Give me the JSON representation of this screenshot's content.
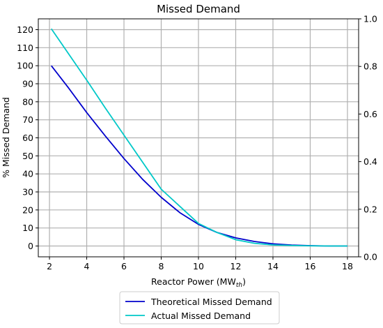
{
  "chart_data": {
    "type": "line",
    "title": "Missed Demand",
    "xlabel": "Reactor Power (MW",
    "xlabel_sub": "th",
    "xlabel_suffix": ")",
    "ylabel": "% Missed Demand",
    "xlim": [
      1.4,
      18.6
    ],
    "ylim": [
      -6,
      126
    ],
    "y2lim": [
      0.0,
      1.0
    ],
    "xticks": [
      2,
      4,
      6,
      8,
      10,
      12,
      14,
      16,
      18
    ],
    "yticks": [
      0,
      10,
      20,
      30,
      40,
      50,
      60,
      70,
      80,
      90,
      100,
      110,
      120
    ],
    "y2ticks": [
      "0.0",
      "0.2",
      "0.4",
      "0.6",
      "0.8",
      "1.0"
    ],
    "grid": true,
    "legend_placement": "bottom-center",
    "series": [
      {
        "name": "Theoretical Missed Demand",
        "color": "#0000cc",
        "x": [
          2.1,
          3,
          4,
          5,
          6,
          7,
          8,
          9,
          10,
          11,
          12,
          13,
          14,
          15,
          16,
          17,
          18
        ],
        "y": [
          100,
          88,
          74,
          61,
          48.5,
          37,
          27,
          18.5,
          12,
          7.5,
          4.5,
          2.5,
          1.2,
          0.5,
          0.2,
          0,
          0
        ]
      },
      {
        "name": "Actual Missed Demand",
        "color": "#00c8c8",
        "x": [
          2.1,
          3,
          4,
          5,
          6,
          7,
          8,
          9,
          10,
          11,
          12,
          13,
          14,
          15,
          16,
          17,
          18
        ],
        "y": [
          120.5,
          107,
          92,
          76.5,
          61.5,
          46.5,
          31.5,
          22,
          12.5,
          7.5,
          3.5,
          1.5,
          0.6,
          0.3,
          0.1,
          0,
          0
        ]
      }
    ]
  }
}
